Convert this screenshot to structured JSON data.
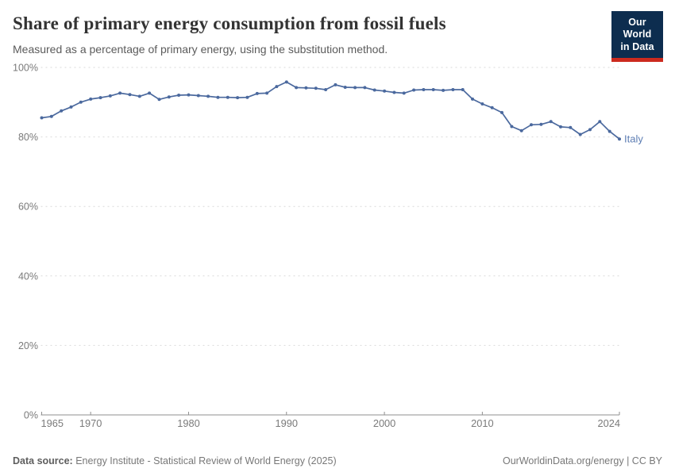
{
  "header": {
    "title": "Share of primary energy consumption from fossil fuels",
    "subtitle": "Measured as a percentage of primary energy, using the substitution method.",
    "logo": {
      "line1": "Our World",
      "line2": "in Data",
      "bg_color": "#0d2d4f",
      "accent_color": "#cc2a1e"
    }
  },
  "chart_data": {
    "type": "line",
    "title": "Share of primary energy consumption from fossil fuels",
    "xlabel": "",
    "ylabel": "",
    "xlim": [
      1965,
      2024
    ],
    "ylim": [
      0,
      100
    ],
    "grid": "horizontal-dashed",
    "legend_position": "end-of-line-label",
    "x_ticks": [
      1965,
      1970,
      1980,
      1990,
      2000,
      2010,
      2024
    ],
    "y_ticks": [
      0,
      20,
      40,
      60,
      80,
      100
    ],
    "y_tick_suffix": "%",
    "series": [
      {
        "name": "Italy",
        "color": "#4b699e",
        "label_color": "#5d7db3",
        "x": [
          1965,
          1966,
          1967,
          1968,
          1969,
          1970,
          1971,
          1972,
          1973,
          1974,
          1975,
          1976,
          1977,
          1978,
          1979,
          1980,
          1981,
          1982,
          1983,
          1984,
          1985,
          1986,
          1987,
          1988,
          1989,
          1990,
          1991,
          1992,
          1993,
          1994,
          1995,
          1996,
          1997,
          1998,
          1999,
          2000,
          2001,
          2002,
          2003,
          2004,
          2005,
          2006,
          2007,
          2008,
          2009,
          2010,
          2011,
          2012,
          2013,
          2014,
          2015,
          2016,
          2017,
          2018,
          2019,
          2020,
          2021,
          2022,
          2023,
          2024
        ],
        "values": [
          85.5,
          85.9,
          87.5,
          88.6,
          90.0,
          90.9,
          91.3,
          91.8,
          92.6,
          92.2,
          91.7,
          92.6,
          90.8,
          91.5,
          92.0,
          92.1,
          91.9,
          91.7,
          91.4,
          91.4,
          91.3,
          91.4,
          92.5,
          92.6,
          94.5,
          95.8,
          94.2,
          94.1,
          94.0,
          93.6,
          95.0,
          94.3,
          94.2,
          94.2,
          93.5,
          93.2,
          92.8,
          92.6,
          93.5,
          93.6,
          93.6,
          93.4,
          93.6,
          93.6,
          90.9,
          89.5,
          88.4,
          87.0,
          83.0,
          81.8,
          83.5,
          83.6,
          84.4,
          82.9,
          82.7,
          80.7,
          82.1,
          84.4,
          81.6,
          79.4
        ]
      }
    ],
    "colors": {
      "gridline": "#dadada",
      "axis_line": "#8f8f8f",
      "tick_label": "#7a7a7a"
    }
  },
  "footer": {
    "datasource_label": "Data source:",
    "datasource_text": "Energy Institute - Statistical Review of World Energy (2025)",
    "rights": "OurWorldinData.org/energy | CC BY"
  }
}
